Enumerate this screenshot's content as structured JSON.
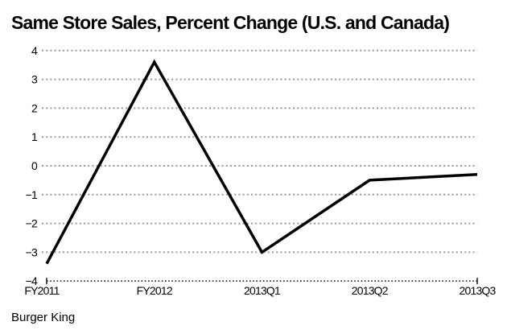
{
  "chart_data": {
    "type": "line",
    "title": "Same Store Sales, Percent Change (U.S. and Canada)",
    "source": "Burger King",
    "categories": [
      "FY2011",
      "FY2012",
      "2013Q1",
      "2013Q2",
      "2013Q3"
    ],
    "series": [
      {
        "name": "Burger King",
        "values": [
          -3.4,
          3.6,
          -3.0,
          -0.5,
          -0.3
        ]
      }
    ],
    "xlabel": "",
    "ylabel": "",
    "ylim": [
      -4,
      4
    ],
    "yticks": [
      4,
      3,
      2,
      1,
      0,
      -1,
      -2,
      -3,
      -4
    ],
    "ytick_labels": [
      "4",
      "3",
      "2",
      "1",
      "0",
      "−1",
      "−2",
      "−3",
      "−4"
    ],
    "grid": "horizontal-dotted",
    "legend": "none",
    "colors": {
      "line": "#000000",
      "grid": "#999999",
      "axis": "#222222",
      "text": "#000000",
      "background": "#ffffff"
    }
  }
}
